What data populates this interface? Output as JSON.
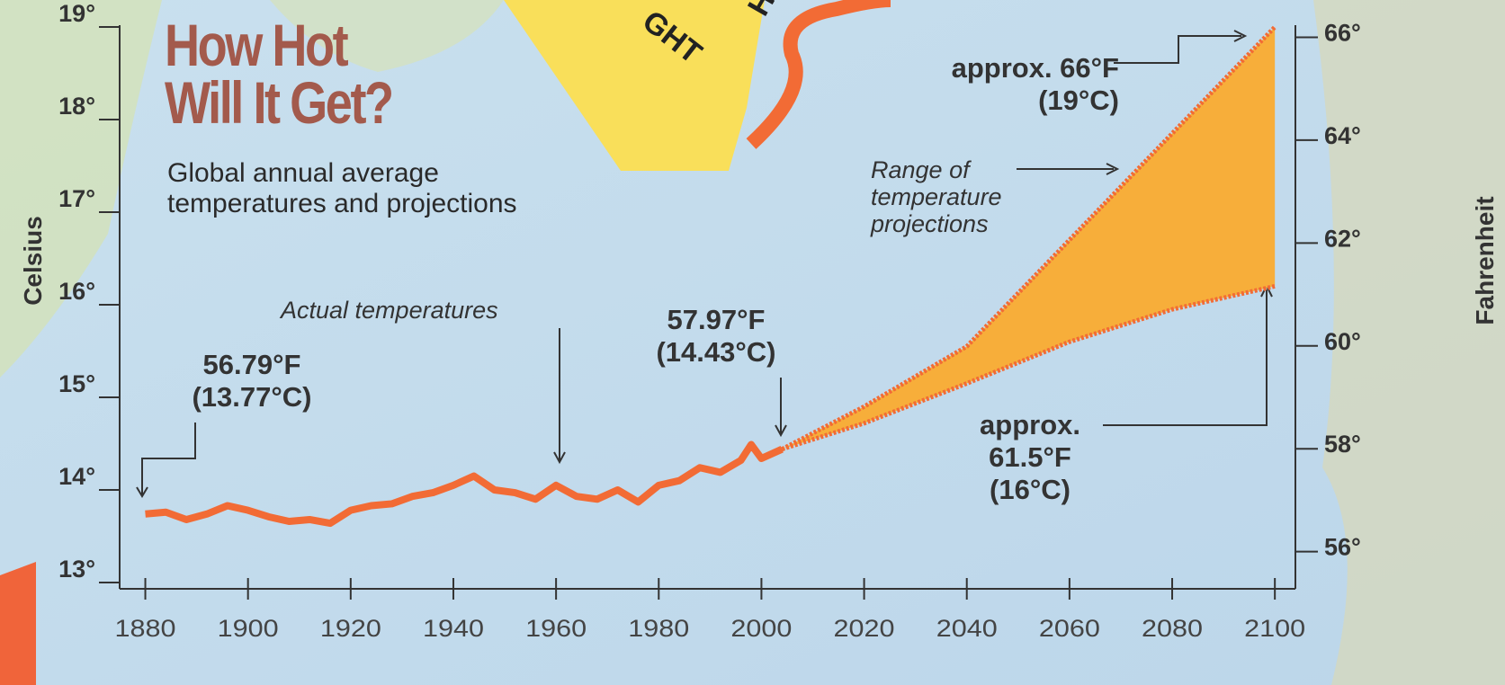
{
  "chart_data": {
    "type": "line",
    "title": "How Hot Will It Get?",
    "subtitle": "Global annual average temperatures and projections",
    "ylabel": "Celsius",
    "y2label": "Fahrenheit",
    "xlim": [
      1875,
      2104
    ],
    "xticks": [
      1880,
      1900,
      1920,
      1940,
      1960,
      1980,
      2000,
      2020,
      2040,
      2060,
      2080,
      2100
    ],
    "ylim": [
      13,
      19
    ],
    "yticks": [
      {
        "value": 13,
        "label": "13°"
      },
      {
        "value": 14,
        "label": "14°"
      },
      {
        "value": 15,
        "label": "15°"
      },
      {
        "value": 16,
        "label": "16°"
      },
      {
        "value": 17,
        "label": "17°"
      },
      {
        "value": 18,
        "label": "18°"
      },
      {
        "value": 19,
        "label": "19°"
      }
    ],
    "y2lim": [
      55.4,
      66.2
    ],
    "y2ticks": [
      {
        "value": 56,
        "label": "56°"
      },
      {
        "value": 58,
        "label": "58°"
      },
      {
        "value": 60,
        "label": "60°"
      },
      {
        "value": 62,
        "label": "62°"
      },
      {
        "value": 64,
        "label": "64°"
      },
      {
        "value": 66,
        "label": "66°"
      }
    ],
    "series": [
      {
        "name": "Actual temperatures",
        "color": "#f26b35",
        "x": [
          1880,
          1884,
          1888,
          1892,
          1896,
          1900,
          1904,
          1908,
          1912,
          1916,
          1920,
          1924,
          1928,
          1932,
          1936,
          1940,
          1944,
          1948,
          1952,
          1956,
          1960,
          1964,
          1968,
          1972,
          1976,
          1980,
          1984,
          1988,
          1992,
          1996,
          1998,
          2000,
          2004
        ],
        "values": [
          13.74,
          13.76,
          13.68,
          13.74,
          13.83,
          13.78,
          13.71,
          13.66,
          13.68,
          13.64,
          13.78,
          13.83,
          13.85,
          13.93,
          13.97,
          14.05,
          14.15,
          14.0,
          13.97,
          13.9,
          14.05,
          13.93,
          13.9,
          14.0,
          13.87,
          14.05,
          14.1,
          14.24,
          14.19,
          14.32,
          14.49,
          14.34,
          14.44
        ]
      },
      {
        "name": "Range of temperature projections",
        "color": "#f7ae3a",
        "edge_color": "#f26b35",
        "type": "band",
        "x": [
          2004,
          2020,
          2040,
          2060,
          2080,
          2100
        ],
        "low": [
          14.44,
          14.72,
          15.15,
          15.6,
          15.95,
          16.2
        ],
        "high": [
          14.44,
          14.9,
          15.55,
          16.7,
          17.85,
          19.0
        ]
      }
    ],
    "annotations": [
      "56.79°F (13.77°C)",
      "57.97°F (14.43°C)",
      "approx. 66°F (19°C)",
      "approx. 61.5°F (16°C)"
    ],
    "background_text": [
      "GHT",
      "HE"
    ]
  }
}
